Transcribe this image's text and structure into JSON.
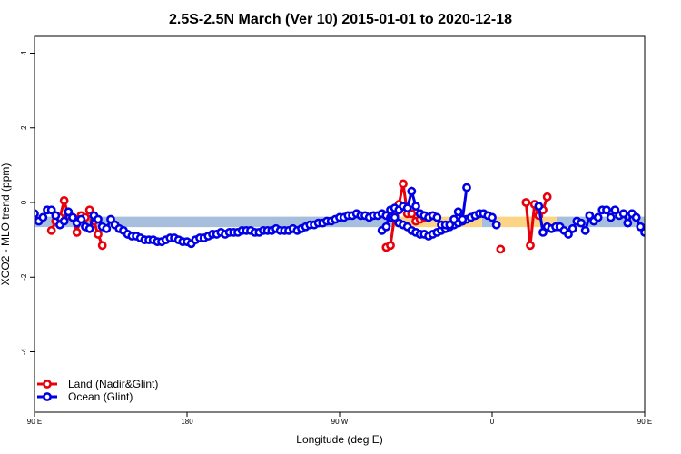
{
  "chart_data": {
    "type": "line",
    "title": "2.5S-2.5N March (Ver 10)   2015-01-01 to 2020-12-18",
    "xlabel": "Longitude (deg E)",
    "ylabel": "XCO2 - MLO trend (ppm)",
    "xlim": [
      90,
      450
    ],
    "ylim": [
      -5.6,
      4.5
    ],
    "x_ticks": [
      {
        "value": 90,
        "label": "90 E"
      },
      {
        "value": 180,
        "label": "180"
      },
      {
        "value": 270,
        "label": "90 W"
      },
      {
        "value": 360,
        "label": "0"
      },
      {
        "value": 450,
        "label": "90 E"
      },
      {
        "value": 540,
        "label": "180"
      }
    ],
    "y_ticks": [
      {
        "value": -4,
        "label": "-4"
      },
      {
        "value": -2,
        "label": "-2"
      },
      {
        "value": 0,
        "label": "0"
      },
      {
        "value": 2,
        "label": "2"
      },
      {
        "value": 4,
        "label": "4"
      }
    ],
    "grid": false,
    "legend_position": "bottom-left",
    "bands": [
      {
        "name": "ocean-band",
        "color": "#a7bedd",
        "segments": [
          [
            90,
            302
          ],
          [
            354,
            362
          ],
          [
            398,
            450
          ]
        ],
        "y": [
          -0.66,
          -0.38
        ]
      },
      {
        "name": "land-band",
        "color": "#fcd486",
        "segments": [
          [
            302,
            354
          ],
          [
            362,
            398
          ]
        ],
        "y": [
          -0.66,
          -0.38
        ]
      }
    ],
    "series": [
      {
        "name": "Land (Nadir&Glint)",
        "color": "#e8000b",
        "segments": [
          {
            "x": [
              100,
              102.5,
              105,
              107.5,
              110,
              112.5,
              115,
              117.5,
              120,
              122.5,
              125,
              127.5,
              130
            ],
            "y": [
              -0.75,
              -0.5,
              -0.4,
              0.05,
              -0.35,
              -0.4,
              -0.8,
              -0.35,
              -0.4,
              -0.2,
              -0.5,
              -0.85,
              -1.15
            ]
          },
          {
            "x": [
              297.5,
              300,
              302.5,
              305,
              307.5,
              310,
              312.5,
              315,
              317.5,
              320
            ],
            "y": [
              -1.2,
              -1.15,
              -0.35,
              -0.05,
              0.5,
              -0.3,
              -0.3,
              -0.5,
              -0.45,
              -0.4
            ]
          },
          {
            "x": [
              365
            ],
            "y": [
              -1.25
            ]
          },
          {
            "x": [
              380,
              382.5,
              385,
              387.5,
              390,
              392.5
            ],
            "y": [
              0,
              -1.15,
              -0.05,
              -0.35,
              -0.2,
              0.15
            ]
          },
          {
            "x": [
              460,
              462.5,
              465,
              467.5,
              470,
              472.5,
              475,
              477.5,
              480,
              482.5,
              485,
              487.5,
              490
            ],
            "y": [
              -0.75,
              -0.5,
              0.05,
              -0.3,
              -0.75,
              -0.35,
              -0.35,
              -0.15,
              -0.4,
              -0.55,
              -0.85,
              -1.15,
              -0.4
            ]
          }
        ]
      },
      {
        "name": "Ocean (Glint)",
        "color": "#0000e6",
        "segments": [
          {
            "x": [
              90,
              92.5,
              95,
              97.5,
              100,
              102.5,
              105,
              107.5,
              110,
              112.5,
              115,
              117.5,
              120,
              122.5,
              125,
              127.5,
              130,
              132.5,
              135,
              137.5,
              140,
              142.5,
              145,
              147.5,
              150,
              152.5,
              155,
              157.5,
              160,
              162.5,
              165,
              167.5,
              170,
              172.5,
              175,
              177.5,
              180,
              182.5,
              185,
              187.5,
              190,
              192.5,
              195,
              197.5,
              200,
              202.5,
              205,
              207.5,
              210,
              212.5,
              215,
              217.5,
              220,
              222.5,
              225,
              227.5,
              230,
              232.5,
              235,
              237.5,
              240,
              242.5,
              245,
              247.5,
              250,
              252.5,
              255,
              257.5,
              260,
              262.5,
              265,
              267.5,
              270,
              272.5,
              275,
              277.5,
              280,
              282.5,
              285,
              287.5,
              290,
              292.5,
              295,
              297.5,
              300,
              302.5,
              305,
              307.5,
              310,
              312.5,
              315,
              317.5,
              320,
              322.5,
              325,
              327.5,
              330,
              332.5,
              335,
              337.5,
              340,
              342.5,
              345,
              347.5,
              350,
              352.5,
              355,
              357.5,
              360,
              362.5
            ],
            "y": [
              -0.3,
              -0.5,
              -0.4,
              -0.2,
              -0.2,
              -0.35,
              -0.6,
              -0.5,
              -0.25,
              -0.4,
              -0.55,
              -0.45,
              -0.65,
              -0.7,
              -0.35,
              -0.45,
              -0.65,
              -0.7,
              -0.45,
              -0.6,
              -0.7,
              -0.75,
              -0.85,
              -0.9,
              -0.9,
              -0.95,
              -1,
              -1,
              -1,
              -1.05,
              -1.05,
              -1,
              -0.95,
              -0.95,
              -1,
              -1.05,
              -1.05,
              -1.1,
              -1,
              -0.95,
              -0.95,
              -0.9,
              -0.85,
              -0.85,
              -0.8,
              -0.85,
              -0.8,
              -0.8,
              -0.8,
              -0.75,
              -0.75,
              -0.75,
              -0.8,
              -0.8,
              -0.75,
              -0.75,
              -0.75,
              -0.7,
              -0.75,
              -0.75,
              -0.75,
              -0.7,
              -0.75,
              -0.7,
              -0.65,
              -0.6,
              -0.6,
              -0.55,
              -0.55,
              -0.5,
              -0.5,
              -0.45,
              -0.4,
              -0.4,
              -0.35,
              -0.35,
              -0.3,
              -0.35,
              -0.35,
              -0.4,
              -0.35,
              -0.35,
              -0.3,
              -0.35,
              -0.4,
              -0.4,
              -0.55,
              -0.6,
              -0.65,
              -0.75,
              -0.8,
              -0.85,
              -0.85,
              -0.9,
              -0.85,
              -0.8,
              -0.75,
              -0.7,
              -0.65,
              -0.6,
              -0.55,
              -0.5,
              -0.45,
              -0.4,
              -0.35,
              -0.3,
              -0.3,
              -0.35,
              -0.4,
              -0.6
            ]
          },
          {
            "x": [
              295,
              297.5,
              300,
              302.5,
              305,
              307.5,
              310,
              312.5,
              315,
              317.5,
              320,
              322.5,
              325,
              327.5,
              330,
              332.5,
              335,
              337.5,
              340,
              342.5,
              345
            ],
            "y": [
              -0.75,
              -0.65,
              -0.2,
              -0.15,
              -0.2,
              -0.1,
              -0.15,
              0.3,
              -0.1,
              -0.3,
              -0.35,
              -0.4,
              -0.35,
              -0.4,
              -0.6,
              -0.6,
              -0.6,
              -0.45,
              -0.25,
              -0.45,
              0.4
            ]
          },
          {
            "x": [
              387.5,
              390,
              392.5,
              395,
              397.5,
              400,
              402.5,
              405,
              407.5,
              410,
              412.5,
              415,
              417.5,
              420,
              422.5,
              425,
              427.5,
              430,
              432.5,
              435,
              437.5,
              440,
              442.5,
              445,
              447.5,
              450
            ],
            "y": [
              -0.1,
              -0.8,
              -0.65,
              -0.7,
              -0.65,
              -0.65,
              -0.75,
              -0.85,
              -0.7,
              -0.5,
              -0.55,
              -0.75,
              -0.35,
              -0.5,
              -0.4,
              -0.2,
              -0.2,
              -0.4,
              -0.2,
              -0.35,
              -0.3,
              -0.55,
              -0.3,
              -0.4,
              -0.65,
              -0.8
            ]
          }
        ]
      }
    ]
  }
}
